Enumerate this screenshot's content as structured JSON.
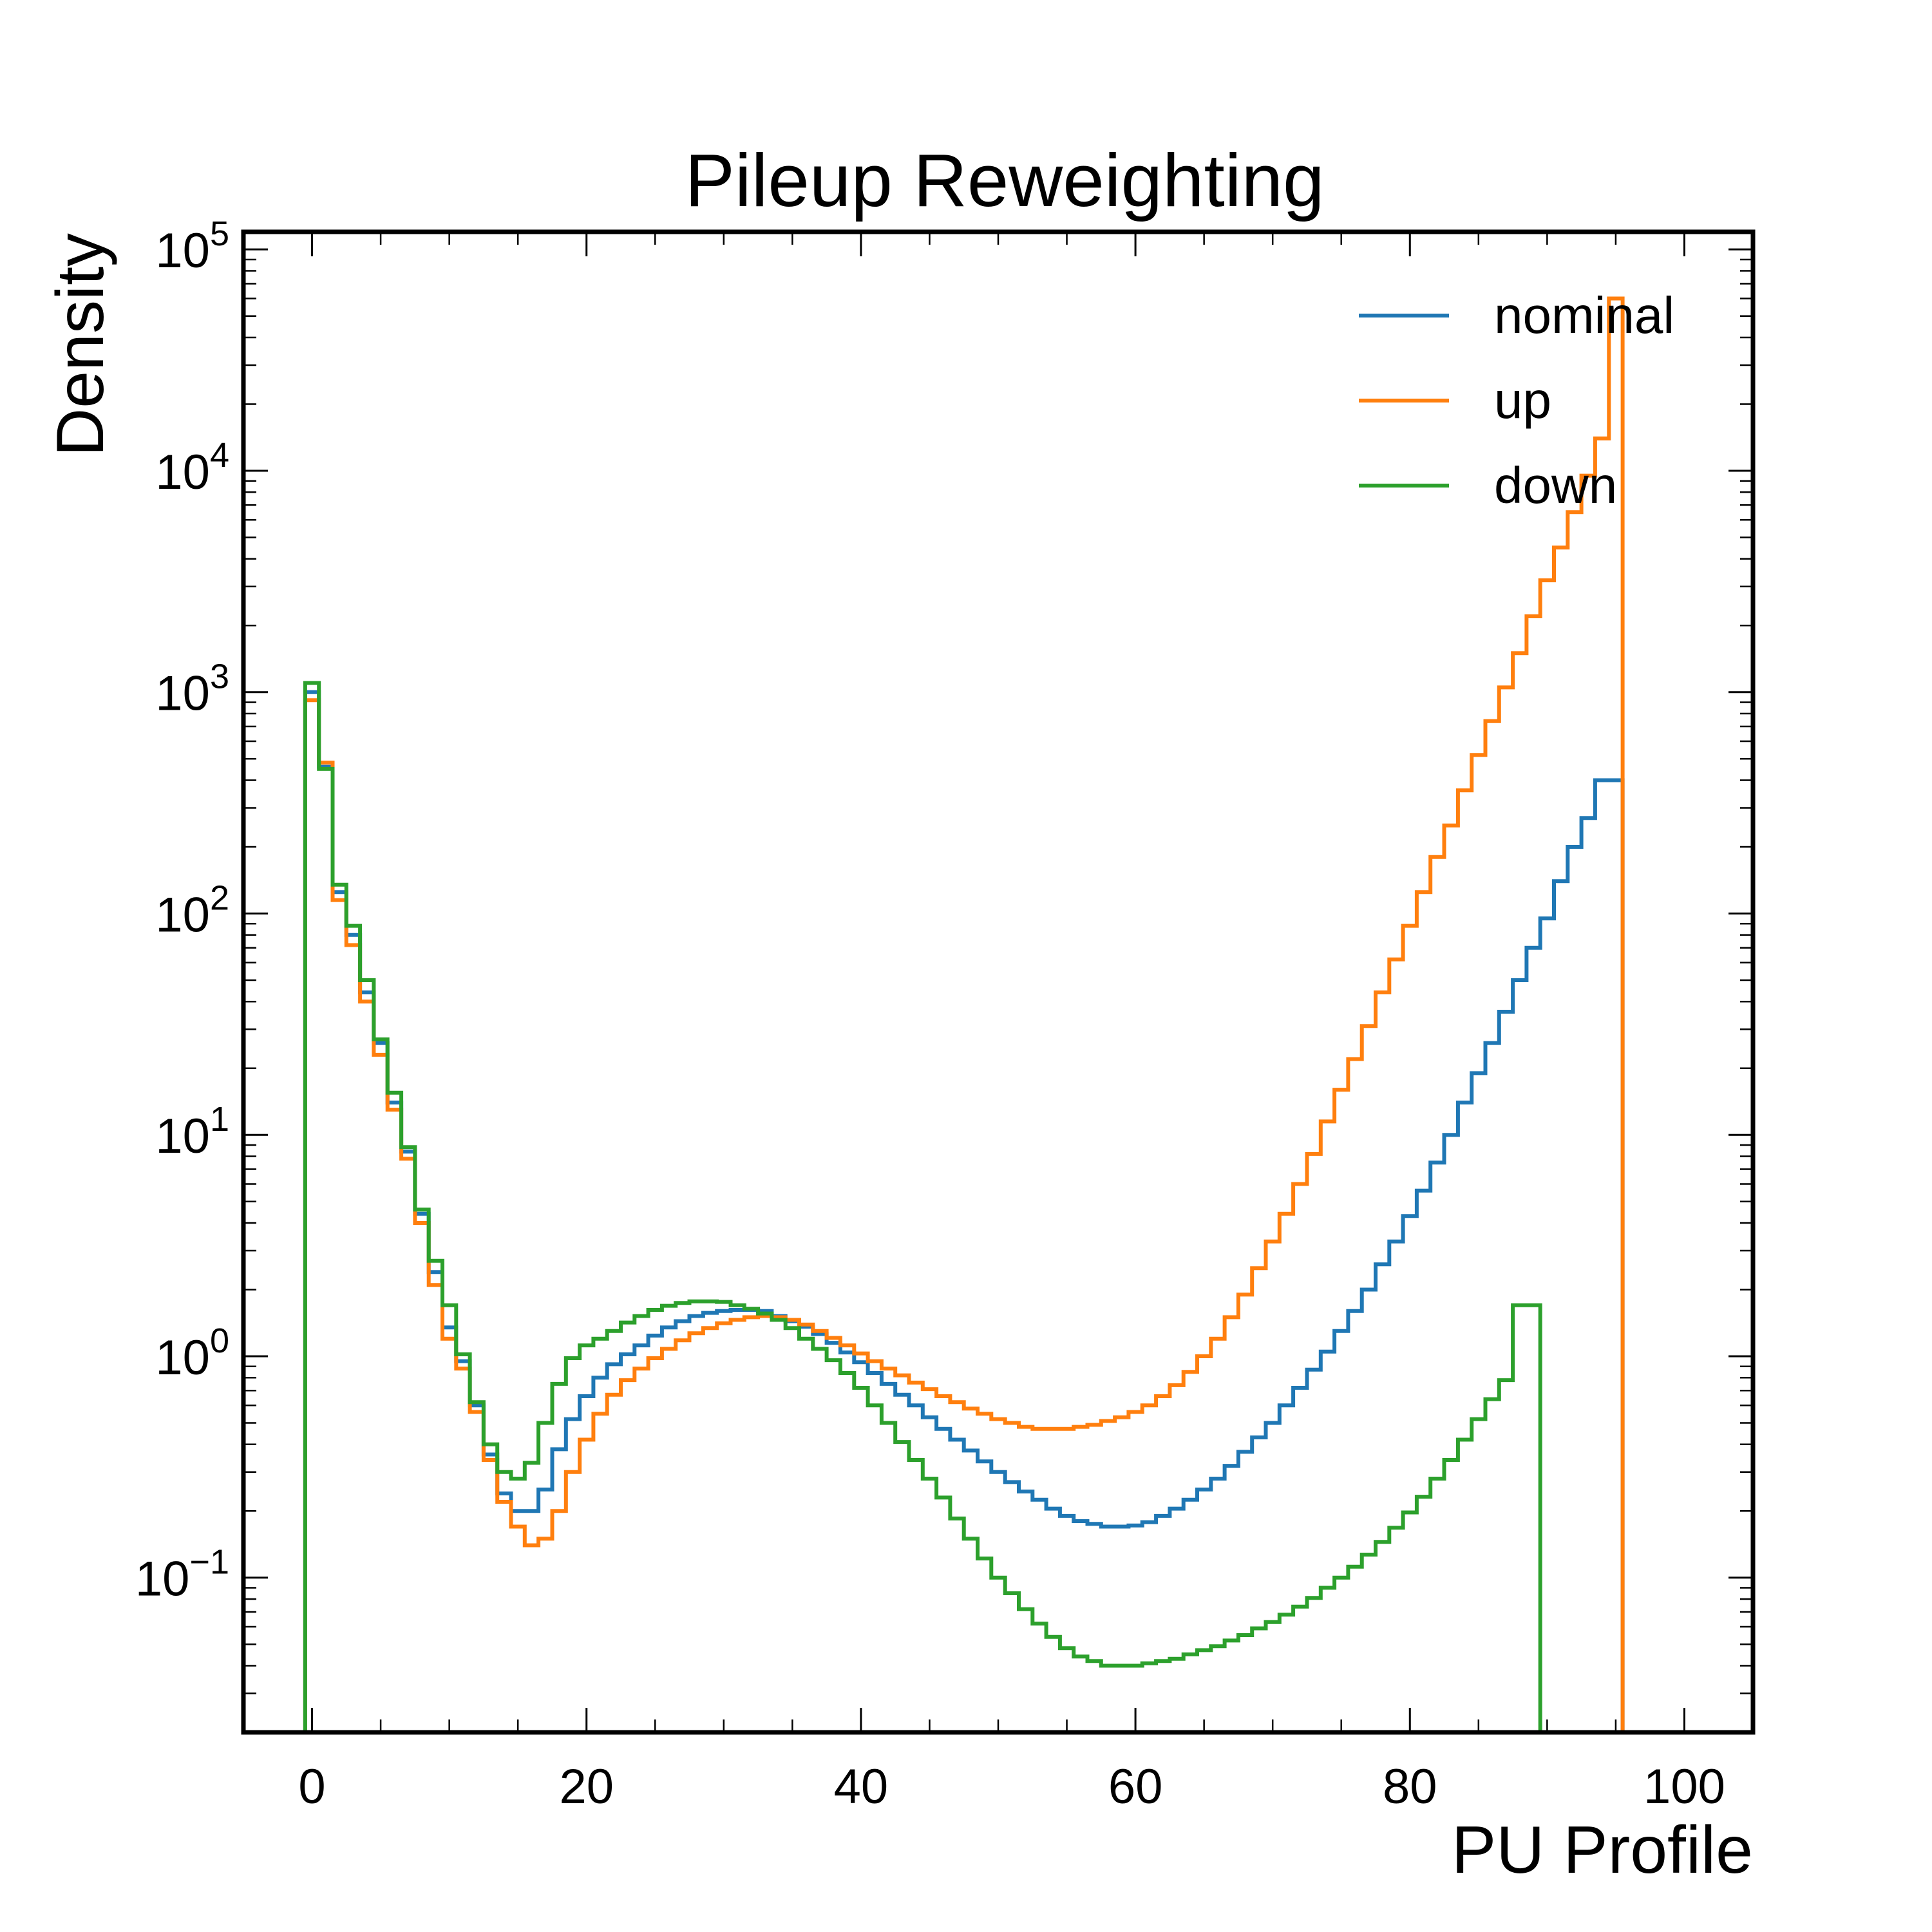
{
  "chart_data": {
    "type": "line",
    "drawstyle": "steps",
    "title": "Pileup Reweighting",
    "xlabel": "PU Profile",
    "ylabel": "Density",
    "xlim": [
      -5,
      105
    ],
    "ylim": [
      0.02,
      120000
    ],
    "yscale": "log",
    "grid": false,
    "legend": "top-right",
    "xticks": [
      {
        "value": 0,
        "label": "0"
      },
      {
        "value": 20,
        "label": "20"
      },
      {
        "value": 40,
        "label": "40"
      },
      {
        "value": 60,
        "label": "60"
      },
      {
        "value": 80,
        "label": "80"
      },
      {
        "value": 100,
        "label": "100"
      }
    ],
    "yticks": [
      {
        "value": 0.1,
        "base": "10",
        "exp": "−1"
      },
      {
        "value": 1,
        "base": "10",
        "exp": "0"
      },
      {
        "value": 10,
        "base": "10",
        "exp": "1"
      },
      {
        "value": 100,
        "base": "10",
        "exp": "2"
      },
      {
        "value": 1000,
        "base": "10",
        "exp": "3"
      },
      {
        "value": 10000,
        "base": "10",
        "exp": "4"
      },
      {
        "value": 100000,
        "base": "10",
        "exp": "5"
      }
    ],
    "bin_edges_start": -0.5,
    "bin_width": 1,
    "series": [
      {
        "name": "nominal",
        "color": "#1f77b4",
        "values": [
          1000,
          460,
          125,
          80,
          44,
          26,
          14,
          8.4,
          4.4,
          2.4,
          1.35,
          0.95,
          0.6,
          0.36,
          0.24,
          0.2,
          0.2,
          0.25,
          0.38,
          0.52,
          0.66,
          0.8,
          0.92,
          1.02,
          1.12,
          1.24,
          1.35,
          1.44,
          1.52,
          1.57,
          1.6,
          1.62,
          1.62,
          1.6,
          1.52,
          1.44,
          1.36,
          1.26,
          1.15,
          1.04,
          0.94,
          0.84,
          0.75,
          0.67,
          0.6,
          0.53,
          0.47,
          0.42,
          0.375,
          0.335,
          0.3,
          0.27,
          0.245,
          0.225,
          0.205,
          0.19,
          0.18,
          0.175,
          0.17,
          0.17,
          0.172,
          0.178,
          0.19,
          0.205,
          0.225,
          0.25,
          0.28,
          0.32,
          0.37,
          0.43,
          0.5,
          0.6,
          0.72,
          0.87,
          1.05,
          1.3,
          1.6,
          2.0,
          2.6,
          3.3,
          4.3,
          5.6,
          7.5,
          10,
          14,
          19,
          26,
          36,
          50,
          70,
          95,
          140,
          200,
          270,
          400,
          400
        ]
      },
      {
        "name": "up",
        "color": "#ff7f0e",
        "values": [
          920,
          480,
          115,
          72,
          40,
          23,
          13,
          7.8,
          4.0,
          2.1,
          1.2,
          0.88,
          0.56,
          0.34,
          0.22,
          0.17,
          0.14,
          0.15,
          0.2,
          0.3,
          0.42,
          0.55,
          0.67,
          0.78,
          0.88,
          0.98,
          1.08,
          1.18,
          1.27,
          1.34,
          1.41,
          1.46,
          1.5,
          1.52,
          1.5,
          1.46,
          1.39,
          1.3,
          1.21,
          1.12,
          1.03,
          0.95,
          0.88,
          0.82,
          0.76,
          0.71,
          0.66,
          0.62,
          0.58,
          0.55,
          0.52,
          0.5,
          0.48,
          0.47,
          0.47,
          0.47,
          0.48,
          0.49,
          0.51,
          0.53,
          0.56,
          0.6,
          0.66,
          0.74,
          0.85,
          1.0,
          1.2,
          1.5,
          1.9,
          2.5,
          3.3,
          4.4,
          6.0,
          8.2,
          11.5,
          16,
          22,
          31,
          44,
          62,
          88,
          125,
          180,
          250,
          360,
          520,
          740,
          1050,
          1500,
          2200,
          3200,
          4500,
          6500,
          9500,
          14000,
          60000
        ]
      },
      {
        "name": "down",
        "color": "#2ca02c",
        "values": [
          1100,
          450,
          135,
          88,
          50,
          27,
          15.5,
          8.8,
          4.6,
          2.7,
          1.7,
          1.02,
          0.62,
          0.4,
          0.3,
          0.28,
          0.33,
          0.5,
          0.75,
          0.98,
          1.12,
          1.2,
          1.3,
          1.42,
          1.52,
          1.62,
          1.69,
          1.74,
          1.77,
          1.77,
          1.76,
          1.7,
          1.64,
          1.56,
          1.46,
          1.34,
          1.2,
          1.08,
          0.96,
          0.84,
          0.72,
          0.6,
          0.5,
          0.41,
          0.34,
          0.28,
          0.23,
          0.185,
          0.15,
          0.122,
          0.1,
          0.085,
          0.072,
          0.062,
          0.054,
          0.048,
          0.044,
          0.042,
          0.04,
          0.04,
          0.04,
          0.041,
          0.042,
          0.043,
          0.045,
          0.047,
          0.049,
          0.052,
          0.055,
          0.059,
          0.063,
          0.068,
          0.074,
          0.081,
          0.09,
          0.1,
          0.112,
          0.127,
          0.145,
          0.168,
          0.197,
          0.232,
          0.28,
          0.34,
          0.42,
          0.52,
          0.64,
          0.78,
          1.7,
          1.7
        ]
      }
    ]
  }
}
